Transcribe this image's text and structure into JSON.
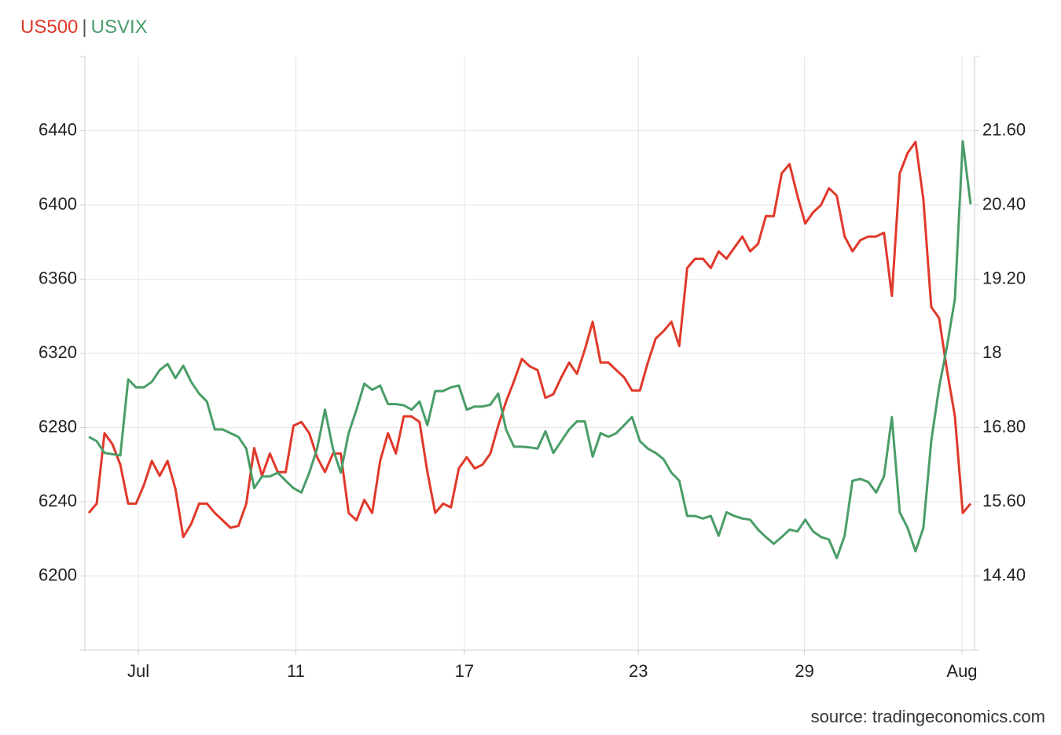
{
  "chart_data": {
    "type": "line",
    "legend_separator": "|",
    "source": "source: tradingeconomics.com",
    "x": [
      0,
      1,
      2,
      3,
      4,
      5,
      6,
      7,
      8,
      9,
      10,
      11,
      12,
      13,
      14,
      15,
      16,
      17,
      18,
      19,
      20,
      21,
      22,
      23,
      24,
      25,
      26,
      27,
      28,
      29,
      30,
      31,
      32,
      33,
      34,
      35,
      36,
      37,
      38,
      39,
      40,
      41,
      42,
      43,
      44,
      45,
      46,
      47,
      48,
      49,
      50,
      51,
      52,
      53,
      54,
      55,
      56,
      57,
      58,
      59,
      60,
      61,
      62,
      63,
      64,
      65,
      66,
      67,
      68,
      69,
      70,
      71,
      72,
      73,
      74,
      75,
      76,
      77,
      78,
      79,
      80,
      81,
      82,
      83,
      84,
      85,
      86,
      87,
      88,
      89,
      90,
      91,
      92,
      93,
      94,
      95,
      96,
      97,
      98,
      99,
      100,
      101,
      102,
      103,
      104,
      105,
      106,
      107,
      108,
      109,
      110,
      111,
      112
    ],
    "xlim": [
      -0.5,
      112.5
    ],
    "xticks": [
      {
        "value": 6.3,
        "label": "Jul"
      },
      {
        "value": 26.3,
        "label": "11"
      },
      {
        "value": 47.7,
        "label": "17"
      },
      {
        "value": 69.8,
        "label": "23"
      },
      {
        "value": 90.9,
        "label": "29"
      },
      {
        "value": 110.9,
        "label": "Aug"
      }
    ],
    "ylim": [
      6160,
      6480
    ],
    "yticks": [
      6200,
      6240,
      6280,
      6320,
      6360,
      6400,
      6440
    ],
    "y2lim": [
      13.2,
      22.8
    ],
    "y2ticks": [
      {
        "value": 14.4,
        "label": "14.40"
      },
      {
        "value": 15.6,
        "label": "15.60"
      },
      {
        "value": 16.8,
        "label": "16.80"
      },
      18,
      {
        "value": 19.2,
        "label": "19.20"
      },
      {
        "value": 20.4,
        "label": "20.40"
      },
      {
        "value": 21.6,
        "label": "21.60"
      }
    ],
    "grid": true,
    "series": [
      {
        "name": "US500",
        "color": "#e0392b",
        "values": [
          6234,
          6239,
          6277,
          6271,
          6260,
          6239,
          6239,
          6249,
          6262,
          6254,
          6262,
          6247,
          6221,
          6228,
          6239,
          6239,
          6234,
          6230,
          6226,
          6227,
          6239,
          6269,
          6254,
          6266,
          6256,
          6256,
          6281,
          6283,
          6277,
          6264,
          6256,
          6266,
          6266,
          6234,
          6230,
          6241,
          6234,
          6262,
          6277,
          6266,
          6286,
          6286,
          6283,
          6256,
          6234,
          6239,
          6237,
          6258,
          6264,
          6258,
          6260,
          6266,
          6281,
          6294,
          6305,
          6317,
          6313,
          6311,
          6296,
          6298,
          6307,
          6315,
          6309,
          6322,
          6337,
          6315,
          6315,
          6311,
          6307,
          6300,
          6300,
          6315,
          6328,
          6332,
          6337,
          6324,
          6366,
          6371,
          6371,
          6366,
          6375,
          6371,
          6377,
          6383,
          6375,
          6379,
          6394,
          6394,
          6417,
          6422,
          6405,
          6390,
          6396,
          6400,
          6409,
          6405,
          6383,
          6375,
          6381,
          6383,
          6383,
          6385,
          6351,
          6417,
          6428,
          6434,
          6403,
          6345,
          6339,
          6311,
          6286,
          6234,
          6239
        ]
      },
      {
        "name": "USVIX",
        "color": "#4a9d68",
        "axis": "y2",
        "values": [
          16.65,
          16.58,
          16.39,
          16.37,
          16.35,
          17.58,
          17.45,
          17.45,
          17.54,
          17.73,
          17.83,
          17.6,
          17.8,
          17.54,
          17.35,
          17.22,
          16.77,
          16.77,
          16.71,
          16.65,
          16.46,
          15.82,
          16.01,
          16.01,
          16.07,
          15.94,
          15.82,
          15.75,
          16.07,
          16.46,
          17.09,
          16.46,
          16.07,
          16.71,
          17.09,
          17.51,
          17.41,
          17.48,
          17.18,
          17.18,
          17.16,
          17.09,
          17.22,
          16.84,
          17.39,
          17.39,
          17.45,
          17.48,
          17.09,
          17.14,
          17.14,
          17.17,
          17.35,
          16.77,
          16.49,
          16.49,
          16.48,
          16.46,
          16.74,
          16.39,
          16.58,
          16.77,
          16.9,
          16.9,
          16.33,
          16.71,
          16.65,
          16.71,
          16.84,
          16.97,
          16.58,
          16.46,
          16.39,
          16.29,
          16.07,
          15.94,
          15.37,
          15.37,
          15.33,
          15.37,
          15.05,
          15.43,
          15.37,
          15.33,
          15.31,
          15.15,
          15.03,
          14.92,
          15.03,
          15.15,
          15.12,
          15.31,
          15.12,
          15.03,
          14.99,
          14.69,
          15.05,
          15.94,
          15.97,
          15.92,
          15.75,
          16.01,
          16.97,
          15.43,
          15.18,
          14.8,
          15.18,
          16.58,
          17.45,
          18.11,
          18.88,
          21.43,
          20.41
        ]
      }
    ]
  }
}
